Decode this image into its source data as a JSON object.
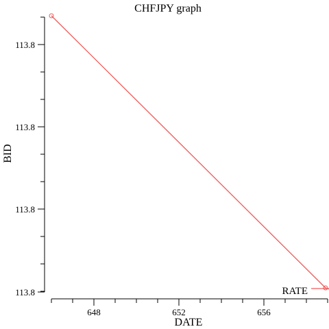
{
  "chart_data": {
    "type": "line",
    "title": "CHFJPY graph",
    "xlabel": "DATE",
    "ylabel": "BID",
    "x_ticks": [
      "648",
      "652",
      "656"
    ],
    "y_ticks": [
      "113.8",
      "113.8",
      "113.8",
      "113.8"
    ],
    "grid": false,
    "legend_position": "bottom-right",
    "color": "#f05a5a",
    "series": [
      {
        "name": "RATE",
        "x": [
          646,
          658.9,
          659.4
        ],
        "y": [
          113.8,
          113.8,
          113.8
        ],
        "marker": "circle"
      }
    ]
  }
}
